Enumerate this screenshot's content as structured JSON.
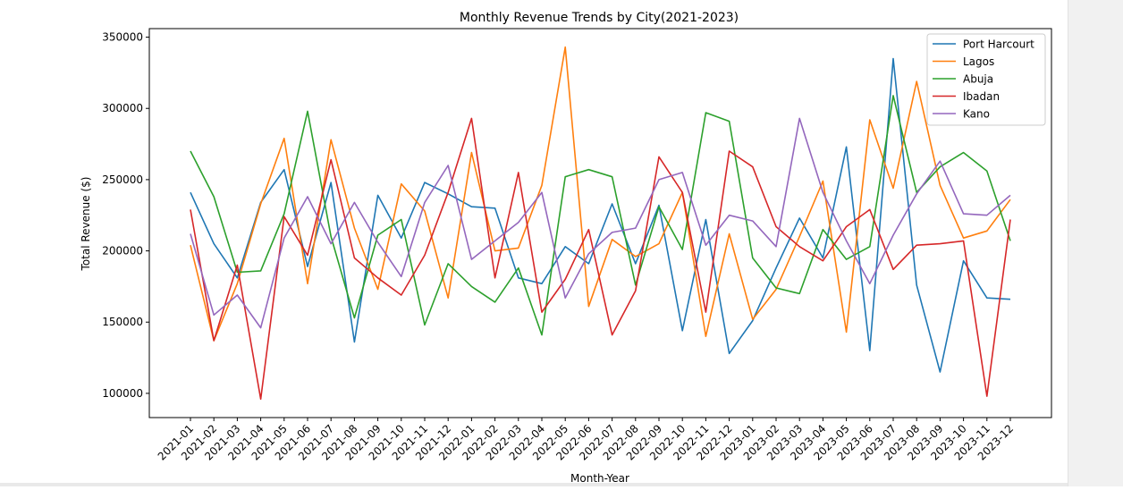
{
  "chart_data": {
    "type": "line",
    "title": "Monthly Revenue Trends by City(2021-2023)",
    "xlabel": "Month-Year",
    "ylabel": "Total Revenue ($)",
    "ylim": [
      83000,
      356000
    ],
    "yticks": [
      100000,
      150000,
      200000,
      250000,
      300000,
      350000
    ],
    "ytick_labels": [
      "100000",
      "150000",
      "200000",
      "250000",
      "300000",
      "350000"
    ],
    "legend_position": "top-right",
    "grid": false,
    "categories": [
      "2021-01",
      "2021-02",
      "2021-03",
      "2021-04",
      "2021-05",
      "2021-06",
      "2021-07",
      "2021-08",
      "2021-09",
      "2021-10",
      "2021-11",
      "2021-12",
      "2022-01",
      "2022-02",
      "2022-03",
      "2022-04",
      "2022-05",
      "2022-06",
      "2022-07",
      "2022-08",
      "2022-09",
      "2022-10",
      "2022-11",
      "2022-12",
      "2023-01",
      "2023-02",
      "2023-03",
      "2023-04",
      "2023-05",
      "2023-06",
      "2023-07",
      "2023-08",
      "2023-09",
      "2023-10",
      "2023-11",
      "2023-12"
    ],
    "series": [
      {
        "name": "Port Harcourt",
        "color": "#1f77b4",
        "values": [
          241000,
          205000,
          181000,
          234000,
          257000,
          189000,
          248000,
          136000,
          239000,
          209000,
          248000,
          240000,
          231000,
          230000,
          181000,
          177000,
          203000,
          191000,
          233000,
          191000,
          232000,
          144000,
          222000,
          128000,
          151000,
          188000,
          223000,
          195000,
          273000,
          130000,
          335000,
          176000,
          115000,
          193000,
          167000,
          166000
        ]
      },
      {
        "name": "Lagos",
        "color": "#ff7f0e",
        "values": [
          204000,
          137000,
          177000,
          233000,
          279000,
          177000,
          278000,
          216000,
          173000,
          247000,
          228000,
          167000,
          269000,
          200000,
          202000,
          246000,
          343000,
          161000,
          208000,
          196000,
          205000,
          241000,
          140000,
          212000,
          152000,
          173000,
          210000,
          249000,
          143000,
          292000,
          244000,
          319000,
          246000,
          209000,
          214000,
          236000
        ]
      },
      {
        "name": "Abuja",
        "color": "#2ca02c",
        "values": [
          270000,
          238000,
          185000,
          186000,
          226000,
          298000,
          210000,
          153000,
          211000,
          222000,
          148000,
          191000,
          175000,
          164000,
          188000,
          141000,
          252000,
          257000,
          252000,
          176000,
          231000,
          201000,
          297000,
          291000,
          195000,
          174000,
          170000,
          215000,
          194000,
          203000,
          309000,
          241000,
          259000,
          269000,
          256000,
          207000
        ]
      },
      {
        "name": "Ibadan",
        "color": "#d62728",
        "values": [
          229000,
          137000,
          190000,
          96000,
          224000,
          197000,
          264000,
          195000,
          181000,
          169000,
          197000,
          241000,
          293000,
          181000,
          255000,
          157000,
          180000,
          215000,
          141000,
          172000,
          266000,
          241000,
          157000,
          270000,
          259000,
          217000,
          203000,
          193000,
          217000,
          229000,
          187000,
          204000,
          205000,
          207000,
          98000,
          222000
        ]
      },
      {
        "name": "Kano",
        "color": "#9467bd",
        "values": [
          212000,
          155000,
          169000,
          146000,
          209000,
          238000,
          205000,
          234000,
          206000,
          182000,
          234000,
          260000,
          194000,
          207000,
          220000,
          241000,
          167000,
          198000,
          213000,
          216000,
          250000,
          255000,
          204000,
          225000,
          221000,
          203000,
          293000,
          241000,
          207000,
          177000,
          211000,
          240000,
          263000,
          226000,
          225000,
          239000
        ]
      }
    ]
  }
}
